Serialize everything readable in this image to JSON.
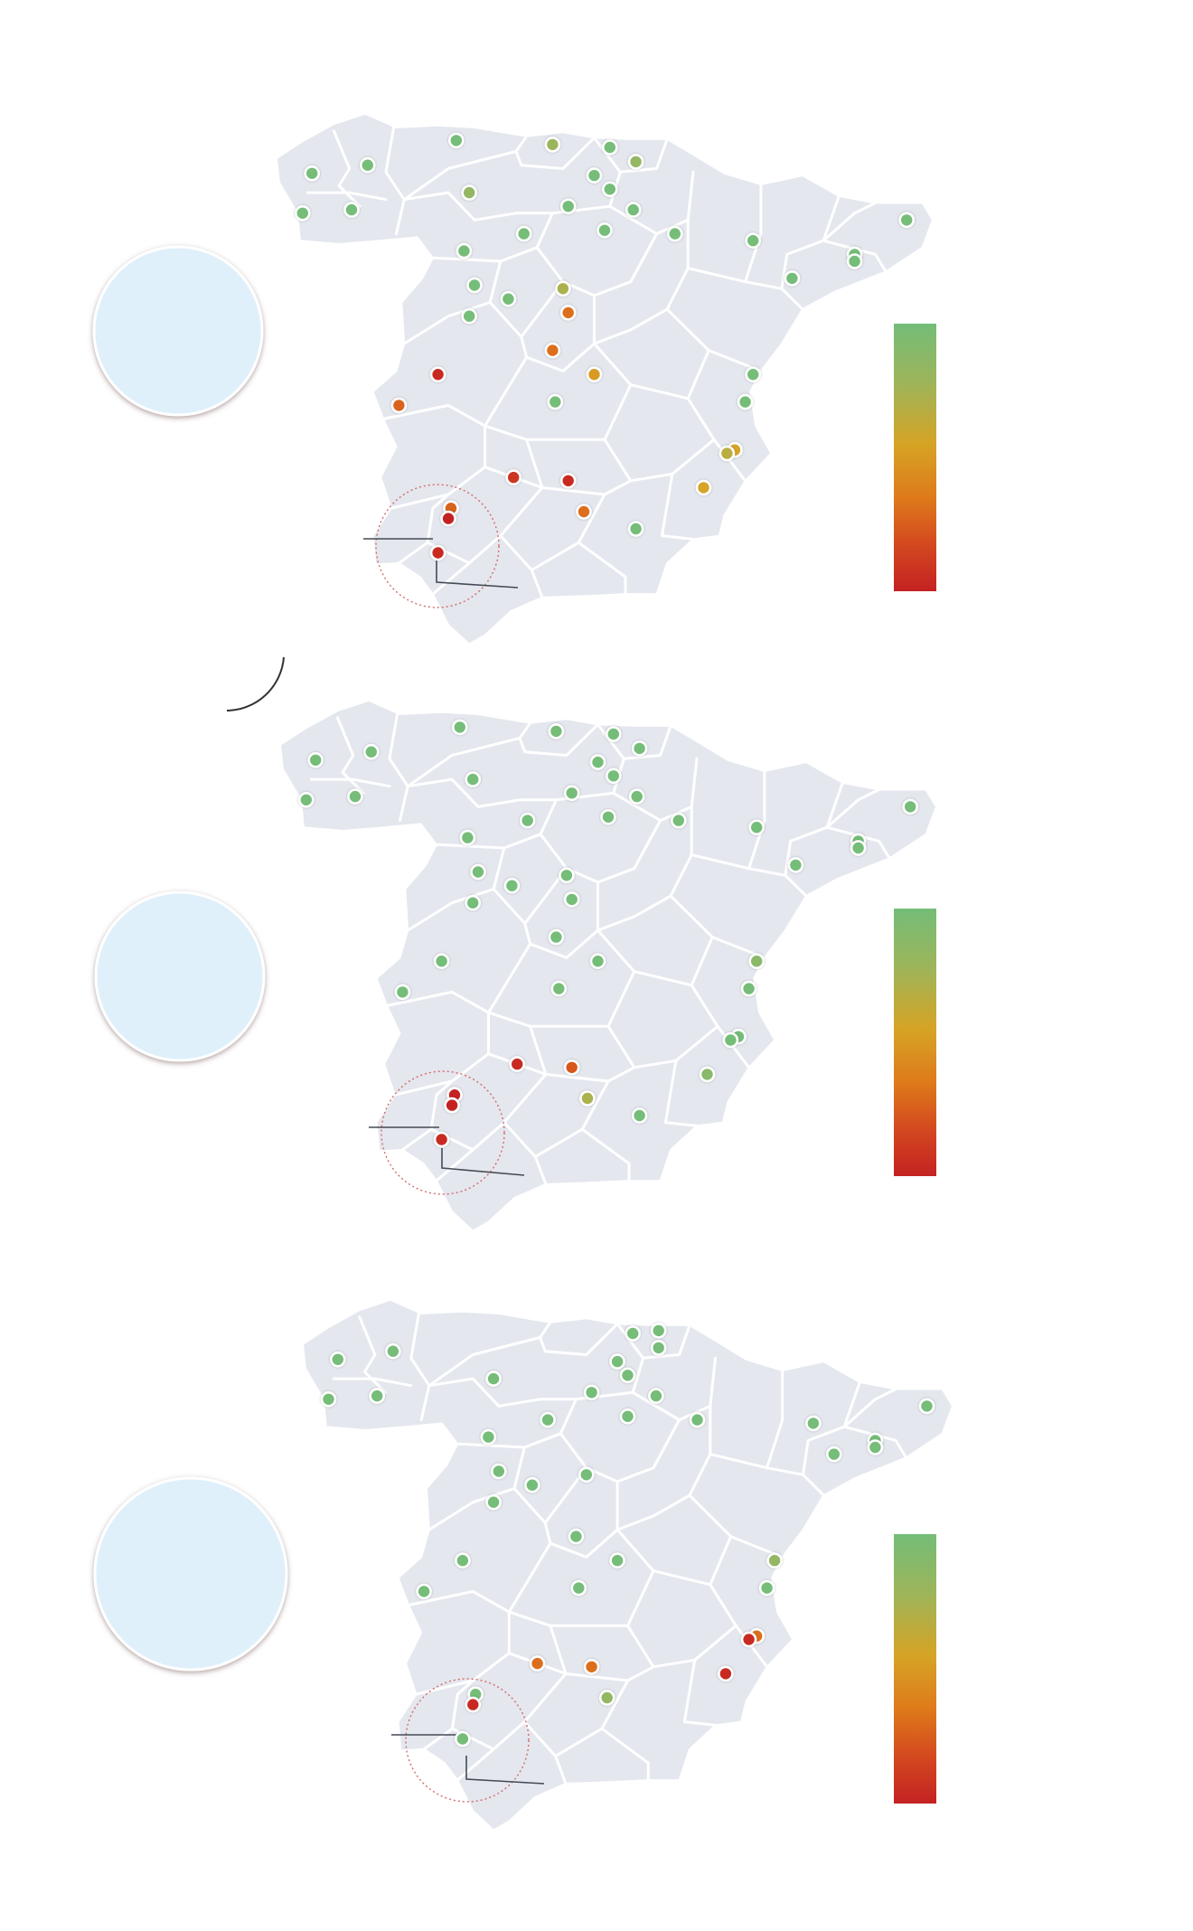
{
  "colors": {
    "land": "#e4e7ee",
    "borders": "#ffffff",
    "badge": "#dff0fb",
    "scale": [
      "#74bd78",
      "#9db55a",
      "#d6a425",
      "#de7a1a",
      "#d44a1f",
      "#c42222"
    ]
  },
  "maps": [
    {
      "id": "map-1",
      "stations": [
        {
          "lon": -8.62,
          "lat": 42.88,
          "level": 1.0
        },
        {
          "lon": -7.55,
          "lat": 43.0,
          "level": 1.0
        },
        {
          "lon": -8.8,
          "lat": 42.3,
          "level": 1.0
        },
        {
          "lon": -7.86,
          "lat": 42.35,
          "level": 1.0
        },
        {
          "lon": -5.85,
          "lat": 43.36,
          "level": 1.0
        },
        {
          "lon": -5.6,
          "lat": 42.6,
          "level": 0.85
        },
        {
          "lon": -4.0,
          "lat": 43.3,
          "level": 0.8
        },
        {
          "lon": -2.9,
          "lat": 43.26,
          "level": 1.0
        },
        {
          "lon": -2.4,
          "lat": 43.05,
          "level": 0.85
        },
        {
          "lon": -3.2,
          "lat": 42.85,
          "level": 1.0
        },
        {
          "lon": -2.9,
          "lat": 42.65,
          "level": 1.0
        },
        {
          "lon": -4.55,
          "lat": 42.0,
          "level": 1.0
        },
        {
          "lon": -3.7,
          "lat": 42.4,
          "level": 1.0
        },
        {
          "lon": -2.45,
          "lat": 42.35,
          "level": 1.0
        },
        {
          "lon": -3.0,
          "lat": 42.05,
          "level": 1.0
        },
        {
          "lon": -1.65,
          "lat": 42.0,
          "level": 1.0
        },
        {
          "lon": -0.15,
          "lat": 41.9,
          "level": 1.0
        },
        {
          "lon": 2.8,
          "lat": 42.2,
          "level": 1.0
        },
        {
          "lon": 1.8,
          "lat": 41.7,
          "level": 1.0
        },
        {
          "lon": 1.8,
          "lat": 41.6,
          "level": 1.0
        },
        {
          "lon": 0.6,
          "lat": 41.35,
          "level": 1.0
        },
        {
          "lon": -5.7,
          "lat": 41.75,
          "level": 1.0
        },
        {
          "lon": -5.5,
          "lat": 41.25,
          "level": 1.0
        },
        {
          "lon": -4.85,
          "lat": 41.05,
          "level": 1.0
        },
        {
          "lon": -5.6,
          "lat": 40.8,
          "level": 1.0
        },
        {
          "lon": -3.8,
          "lat": 41.2,
          "level": 0.75
        },
        {
          "lon": -3.7,
          "lat": 40.85,
          "level": 0.35
        },
        {
          "lon": -4.0,
          "lat": 40.3,
          "level": 0.35
        },
        {
          "lon": -3.2,
          "lat": 39.95,
          "level": 0.55
        },
        {
          "lon": -6.2,
          "lat": 39.95,
          "level": 0.05
        },
        {
          "lon": -6.95,
          "lat": 39.5,
          "level": 0.3
        },
        {
          "lon": -3.95,
          "lat": 39.55,
          "level": 1.0
        },
        {
          "lon": -0.15,
          "lat": 39.95,
          "level": 1.0
        },
        {
          "lon": -0.3,
          "lat": 39.55,
          "level": 1.0
        },
        {
          "lon": -0.5,
          "lat": 38.85,
          "level": 0.6
        },
        {
          "lon": -0.65,
          "lat": 38.8,
          "level": 0.7
        },
        {
          "lon": -1.1,
          "lat": 38.3,
          "level": 0.6
        },
        {
          "lon": -4.75,
          "lat": 38.45,
          "level": 0.1
        },
        {
          "lon": -3.7,
          "lat": 38.4,
          "level": 0.05
        },
        {
          "lon": -5.95,
          "lat": 38.0,
          "level": 0.3
        },
        {
          "lon": -6.0,
          "lat": 37.85,
          "level": 0.0
        },
        {
          "lon": -3.4,
          "lat": 37.95,
          "level": 0.35
        },
        {
          "lon": -2.4,
          "lat": 37.7,
          "level": 1.0
        },
        {
          "lon": -6.2,
          "lat": 37.35,
          "level": 0.05
        }
      ]
    },
    {
      "id": "map-2",
      "stations": [
        {
          "lon": -8.62,
          "lat": 42.88,
          "level": 1.0
        },
        {
          "lon": -7.55,
          "lat": 43.0,
          "level": 1.0
        },
        {
          "lon": -8.8,
          "lat": 42.3,
          "level": 1.0
        },
        {
          "lon": -7.86,
          "lat": 42.35,
          "level": 1.0
        },
        {
          "lon": -5.85,
          "lat": 43.36,
          "level": 1.0
        },
        {
          "lon": -5.6,
          "lat": 42.6,
          "level": 1.0
        },
        {
          "lon": -4.0,
          "lat": 43.3,
          "level": 1.0
        },
        {
          "lon": -2.9,
          "lat": 43.26,
          "level": 1.0
        },
        {
          "lon": -2.4,
          "lat": 43.05,
          "level": 1.0
        },
        {
          "lon": -3.2,
          "lat": 42.85,
          "level": 1.0
        },
        {
          "lon": -2.9,
          "lat": 42.65,
          "level": 1.0
        },
        {
          "lon": -4.55,
          "lat": 42.0,
          "level": 1.0
        },
        {
          "lon": -3.7,
          "lat": 42.4,
          "level": 1.0
        },
        {
          "lon": -2.45,
          "lat": 42.35,
          "level": 1.0
        },
        {
          "lon": -3.0,
          "lat": 42.05,
          "level": 1.0
        },
        {
          "lon": -1.65,
          "lat": 42.0,
          "level": 1.0
        },
        {
          "lon": -0.15,
          "lat": 41.9,
          "level": 1.0
        },
        {
          "lon": 2.8,
          "lat": 42.2,
          "level": 1.0
        },
        {
          "lon": 1.8,
          "lat": 41.7,
          "level": 1.0
        },
        {
          "lon": 1.8,
          "lat": 41.6,
          "level": 1.0
        },
        {
          "lon": 0.6,
          "lat": 41.35,
          "level": 1.0
        },
        {
          "lon": -5.7,
          "lat": 41.75,
          "level": 1.0
        },
        {
          "lon": -5.5,
          "lat": 41.25,
          "level": 1.0
        },
        {
          "lon": -4.85,
          "lat": 41.05,
          "level": 1.0
        },
        {
          "lon": -5.6,
          "lat": 40.8,
          "level": 1.0
        },
        {
          "lon": -3.8,
          "lat": 41.2,
          "level": 1.0
        },
        {
          "lon": -3.7,
          "lat": 40.85,
          "level": 1.0
        },
        {
          "lon": -4.0,
          "lat": 40.3,
          "level": 1.0
        },
        {
          "lon": -3.2,
          "lat": 39.95,
          "level": 1.0
        },
        {
          "lon": -6.2,
          "lat": 39.95,
          "level": 1.0
        },
        {
          "lon": -6.95,
          "lat": 39.5,
          "level": 1.0
        },
        {
          "lon": -3.95,
          "lat": 39.55,
          "level": 1.0
        },
        {
          "lon": -0.15,
          "lat": 39.95,
          "level": 0.9
        },
        {
          "lon": -0.3,
          "lat": 39.55,
          "level": 1.0
        },
        {
          "lon": -0.5,
          "lat": 38.85,
          "level": 1.0
        },
        {
          "lon": -0.65,
          "lat": 38.8,
          "level": 1.0
        },
        {
          "lon": -1.1,
          "lat": 38.3,
          "level": 0.9
        },
        {
          "lon": -4.75,
          "lat": 38.45,
          "level": 0.05
        },
        {
          "lon": -3.7,
          "lat": 38.4,
          "level": 0.25
        },
        {
          "lon": -5.95,
          "lat": 38.0,
          "level": 0.0
        },
        {
          "lon": -6.0,
          "lat": 37.85,
          "level": 0.0
        },
        {
          "lon": -3.4,
          "lat": 37.95,
          "level": 0.75
        },
        {
          "lon": -2.4,
          "lat": 37.7,
          "level": 1.0
        },
        {
          "lon": -6.2,
          "lat": 37.35,
          "level": 0.05
        }
      ]
    },
    {
      "id": "map-3",
      "stations": [
        {
          "lon": -8.62,
          "lat": 42.88,
          "level": 1.0
        },
        {
          "lon": -7.55,
          "lat": 43.0,
          "level": 1.0
        },
        {
          "lon": -8.8,
          "lat": 42.3,
          "level": 1.0
        },
        {
          "lon": -7.86,
          "lat": 42.35,
          "level": 1.0
        },
        {
          "lon": -5.6,
          "lat": 42.6,
          "level": 1.0
        },
        {
          "lon": -2.9,
          "lat": 43.26,
          "level": 1.0
        },
        {
          "lon": -2.4,
          "lat": 43.3,
          "level": 1.0
        },
        {
          "lon": -3.2,
          "lat": 42.85,
          "level": 1.0
        },
        {
          "lon": -2.4,
          "lat": 43.05,
          "level": 1.0
        },
        {
          "lon": -3.0,
          "lat": 42.65,
          "level": 1.0
        },
        {
          "lon": -4.55,
          "lat": 42.0,
          "level": 1.0
        },
        {
          "lon": -3.7,
          "lat": 42.4,
          "level": 1.0
        },
        {
          "lon": -2.45,
          "lat": 42.35,
          "level": 1.0
        },
        {
          "lon": -3.0,
          "lat": 42.05,
          "level": 1.0
        },
        {
          "lon": -1.65,
          "lat": 42.0,
          "level": 1.0
        },
        {
          "lon": 0.6,
          "lat": 41.95,
          "level": 1.0
        },
        {
          "lon": 2.8,
          "lat": 42.2,
          "level": 1.0
        },
        {
          "lon": 1.8,
          "lat": 41.7,
          "level": 1.0
        },
        {
          "lon": 1.8,
          "lat": 41.6,
          "level": 1.0
        },
        {
          "lon": 1.0,
          "lat": 41.5,
          "level": 1.0
        },
        {
          "lon": -5.7,
          "lat": 41.75,
          "level": 1.0
        },
        {
          "lon": -5.5,
          "lat": 41.25,
          "level": 1.0
        },
        {
          "lon": -4.85,
          "lat": 41.05,
          "level": 1.0
        },
        {
          "lon": -5.6,
          "lat": 40.8,
          "level": 1.0
        },
        {
          "lon": -3.8,
          "lat": 41.2,
          "level": 1.0
        },
        {
          "lon": -4.0,
          "lat": 40.3,
          "level": 1.0
        },
        {
          "lon": -3.2,
          "lat": 39.95,
          "level": 1.0
        },
        {
          "lon": -6.2,
          "lat": 39.95,
          "level": 1.0
        },
        {
          "lon": -6.95,
          "lat": 39.5,
          "level": 1.0
        },
        {
          "lon": -3.95,
          "lat": 39.55,
          "level": 1.0
        },
        {
          "lon": -0.15,
          "lat": 39.95,
          "level": 0.85
        },
        {
          "lon": -0.3,
          "lat": 39.55,
          "level": 1.0
        },
        {
          "lon": -0.5,
          "lat": 38.85,
          "level": 0.35
        },
        {
          "lon": -0.65,
          "lat": 38.8,
          "level": 0.05
        },
        {
          "lon": -1.1,
          "lat": 38.3,
          "level": 0.05
        },
        {
          "lon": -4.75,
          "lat": 38.45,
          "level": 0.35
        },
        {
          "lon": -3.7,
          "lat": 38.4,
          "level": 0.35
        },
        {
          "lon": -5.95,
          "lat": 38.0,
          "level": 1.0
        },
        {
          "lon": -6.0,
          "lat": 37.85,
          "level": 0.05
        },
        {
          "lon": -3.4,
          "lat": 37.95,
          "level": 0.85
        },
        {
          "lon": -6.2,
          "lat": 37.35,
          "level": 1.0
        }
      ]
    }
  ]
}
